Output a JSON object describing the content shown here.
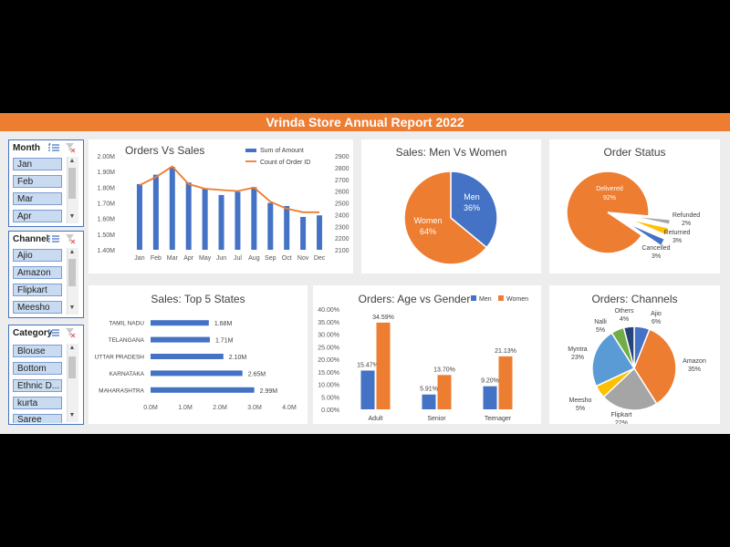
{
  "report_title": "Vrinda Store Annual Report 2022",
  "colors": {
    "banner": "#ed7d31",
    "blue": "#4472c4",
    "orange": "#ed7d31",
    "gray": "#a5a5a5",
    "yellow": "#ffc000",
    "lightblue": "#5b9bd5",
    "green": "#70ad47",
    "navy": "#264478"
  },
  "slicers": {
    "month": {
      "title": "Month",
      "items": [
        "Jan",
        "Feb",
        "Mar",
        "Apr"
      ]
    },
    "channel": {
      "title": "Channel",
      "items": [
        "Ajio",
        "Amazon",
        "Flipkart",
        "Meesho"
      ]
    },
    "category": {
      "title": "Category",
      "items": [
        "Blouse",
        "Bottom",
        "Ethnic D...",
        "kurta",
        "Saree"
      ]
    }
  },
  "chart_data": [
    {
      "type": "bar",
      "title": "Orders Vs Sales",
      "categories": [
        "Jan",
        "Feb",
        "Mar",
        "Apr",
        "May",
        "Jun",
        "Jul",
        "Aug",
        "Sep",
        "Oct",
        "Nov",
        "Dec"
      ],
      "series": [
        {
          "name": "Sum of Amount",
          "values": [
            1.82,
            1.88,
            1.93,
            1.83,
            1.79,
            1.75,
            1.77,
            1.8,
            1.7,
            1.68,
            1.61,
            1.62
          ],
          "axis": "left"
        },
        {
          "name": "Count of Order ID",
          "type": "line",
          "values": [
            2650,
            2720,
            2810,
            2660,
            2620,
            2610,
            2600,
            2630,
            2510,
            2450,
            2420,
            2420
          ],
          "axis": "right"
        }
      ],
      "ylim": [
        1.4,
        2.0
      ],
      "y_ticks": [
        "1.40M",
        "1.50M",
        "1.60M",
        "1.70M",
        "1.80M",
        "1.90M",
        "2.00M"
      ],
      "y2lim": [
        2100,
        2900
      ],
      "y2_ticks": [
        "2100",
        "2200",
        "2300",
        "2400",
        "2500",
        "2600",
        "2700",
        "2800",
        "2900"
      ],
      "legend": "top-right"
    },
    {
      "type": "pie",
      "title": "Sales: Men Vs Women",
      "labels": [
        "Men",
        "Women"
      ],
      "values": [
        36,
        64
      ],
      "value_labels": [
        "36%",
        "64%"
      ]
    },
    {
      "type": "pie",
      "title": "Order Status",
      "labels": [
        "Delivered",
        "Refunded",
        "Returned",
        "Cancelled"
      ],
      "values": [
        92,
        2,
        3,
        3
      ],
      "value_labels": [
        "92%",
        "2%",
        "3%",
        "3%"
      ]
    },
    {
      "type": "bar",
      "orientation": "horizontal",
      "title": "Sales: Top 5 States",
      "categories": [
        "TAMIL NADU",
        "TELANGANA",
        "UTTAR PRADESH",
        "KARNATAKA",
        "MAHARASHTRA"
      ],
      "values": [
        1.68,
        1.71,
        2.1,
        2.65,
        2.99
      ],
      "value_labels": [
        "1.68M",
        "1.71M",
        "2.10M",
        "2.65M",
        "2.99M"
      ],
      "xlim": [
        0,
        4
      ],
      "x_ticks": [
        "0.0M",
        "1.0M",
        "2.0M",
        "3.0M",
        "4.0M"
      ]
    },
    {
      "type": "bar",
      "title": "Orders: Age vs Gender",
      "categories": [
        "Adult",
        "Senior",
        "Teenager"
      ],
      "series": [
        {
          "name": "Men",
          "values": [
            15.47,
            5.91,
            9.2
          ],
          "value_labels": [
            "15.47%",
            "5.91%",
            "9.20%"
          ]
        },
        {
          "name": "Women",
          "values": [
            34.59,
            13.7,
            21.13
          ],
          "value_labels": [
            "34.59%",
            "13.70%",
            "21.13%"
          ]
        }
      ],
      "ylim": [
        0,
        40
      ],
      "y_ticks": [
        "0.00%",
        "5.00%",
        "10.00%",
        "15.00%",
        "20.00%",
        "25.00%",
        "30.00%",
        "35.00%",
        "40.00%"
      ],
      "legend": "top-right"
    },
    {
      "type": "pie",
      "title": "Orders: Channels",
      "labels": [
        "Ajio",
        "Amazon",
        "Flipkart",
        "Meesho",
        "Myntra",
        "Nalli",
        "Others"
      ],
      "values": [
        6,
        35,
        22,
        5,
        23,
        5,
        4
      ],
      "value_labels": [
        "6%",
        "35%",
        "22%",
        "5%",
        "23%",
        "5%",
        "4%"
      ]
    }
  ]
}
